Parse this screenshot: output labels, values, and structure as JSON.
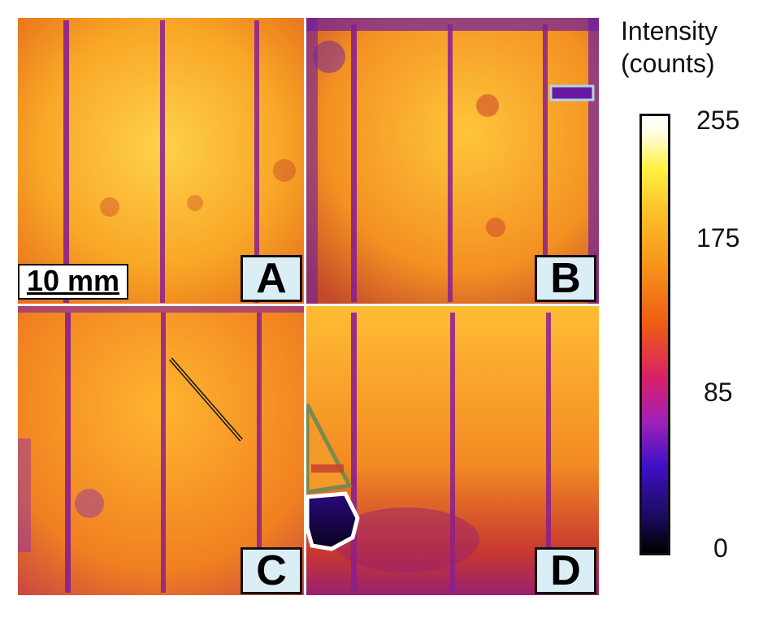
{
  "panels": [
    {
      "label": "A"
    },
    {
      "label": "B"
    },
    {
      "label": "C"
    },
    {
      "label": "D"
    }
  ],
  "scale_bar": {
    "text": "10 mm"
  },
  "colorbar": {
    "title_line1": "Intensity",
    "title_line2": "(counts)",
    "ticks": [
      "255",
      "175",
      "85",
      "0"
    ],
    "colormap": [
      "#000000",
      "#4010c8",
      "#d8206a",
      "#f8951a",
      "#fff240",
      "#ffffff"
    ]
  },
  "colors": {
    "panel_bg": "#f39a2a",
    "busbar": "#8a1f8f",
    "label_bg": "#dbeef6",
    "outline_green": "#7a8a4a",
    "outline_white": "#ffffff",
    "outline_lightblue": "#b0d4e8"
  }
}
